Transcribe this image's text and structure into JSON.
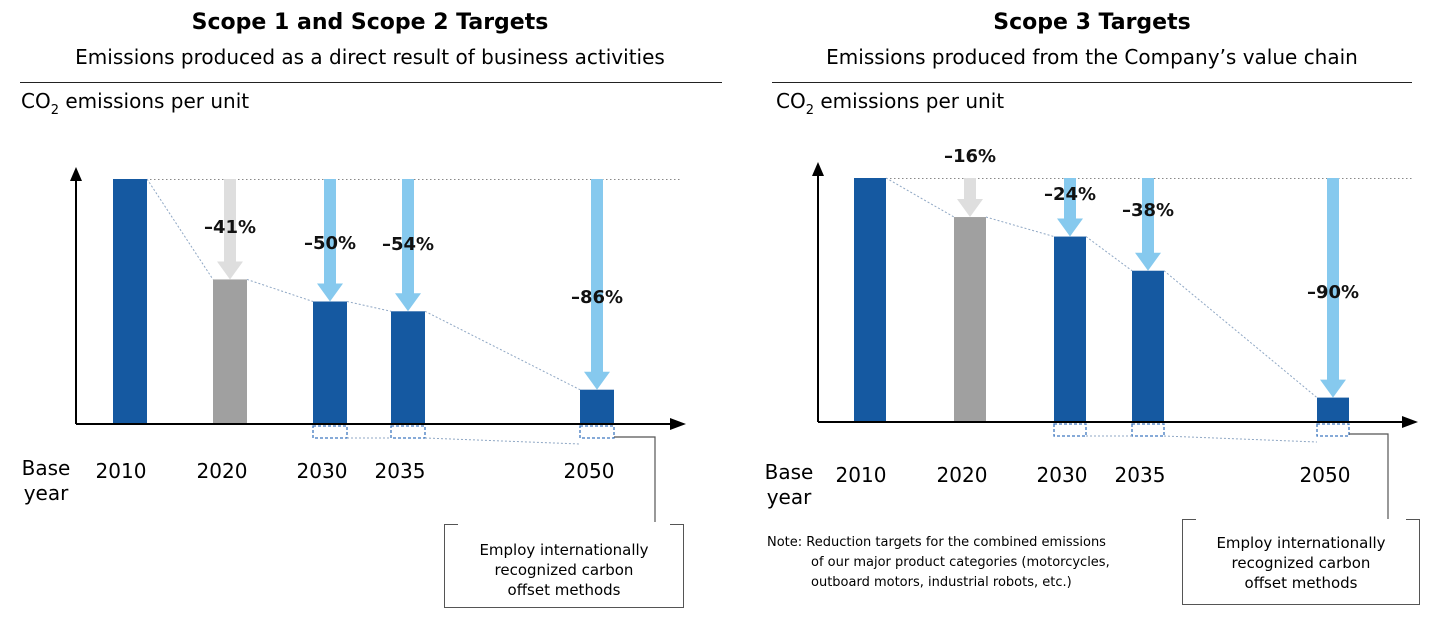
{
  "colors": {
    "bar_blue": "#1559a1",
    "bar_gray": "#a0a0a0",
    "arrow_light_blue": "#86c9ee",
    "arrow_gray": "#dedede",
    "dotted_line": "#8fa7c4",
    "dashed_box": "#3f78c0"
  },
  "icons": {
    "axis_arrow": "axis-arrow-icon",
    "reduction_arrow": "down-arrow-icon"
  },
  "panels": [
    {
      "title": "Scope 1 and Scope 2 Targets",
      "subtitle": "Emissions produced as  a direct result of business activities",
      "ylabel_prefix": "CO",
      "ylabel_sub": "2",
      "ylabel_suffix": " emissions per unit",
      "base_year_line1": "Base",
      "base_year_line2": "year",
      "offset_note": [
        "Employ internationally",
        "recognized carbon",
        "offset methods"
      ]
    },
    {
      "title": "Scope 3 Targets",
      "subtitle": "Emissions produced from the Company’s value chain",
      "ylabel_prefix": "CO",
      "ylabel_sub": "2",
      "ylabel_suffix": " emissions per unit",
      "base_year_line1": "Base",
      "base_year_line2": "year",
      "offset_note": [
        "Employ internationally",
        "recognized carbon",
        "offset methods"
      ],
      "note_line1": "Note: Reduction targets for the combined emissions",
      "note_line2": "of our major product categories (motorcycles,",
      "note_line3": "outboard motors, industrial robots, etc.)"
    }
  ],
  "chart_data": [
    {
      "type": "bar",
      "title": "Scope 1 and Scope 2 Targets",
      "ylabel": "CO2 emissions per unit",
      "xlabel": "",
      "categories": [
        "2010",
        "2020",
        "2030",
        "2035",
        "2050"
      ],
      "values": [
        100,
        59,
        50,
        46,
        14
      ],
      "reduction_labels": [
        "",
        "–41%",
        "–50%",
        "–54%",
        "–86%"
      ],
      "kinds": [
        "base",
        "actual",
        "target",
        "target",
        "target"
      ],
      "ylim": [
        0,
        100
      ],
      "grid": false
    },
    {
      "type": "bar",
      "title": "Scope 3 Targets",
      "ylabel": "CO2 emissions per unit",
      "xlabel": "",
      "categories": [
        "2010",
        "2020",
        "2030",
        "2035",
        "2050"
      ],
      "values": [
        100,
        84,
        76,
        62,
        10
      ],
      "reduction_labels": [
        "",
        "–16%",
        "–24%",
        "–38%",
        "–90%"
      ],
      "kinds": [
        "base",
        "actual",
        "target",
        "target",
        "target"
      ],
      "ylim": [
        0,
        100
      ],
      "grid": false
    }
  ]
}
